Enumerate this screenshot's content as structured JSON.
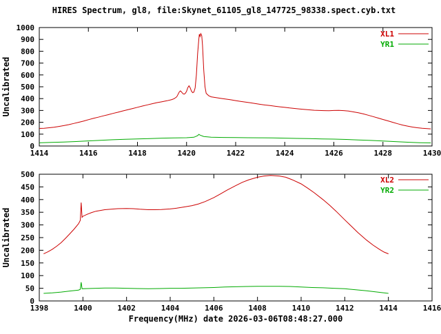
{
  "title": "HIRES Spectrum, gl8, file:Skynet_61105_gl8_147725_98338.spect.cyb.txt",
  "xlabel": "Frequency(MHz) date 2026-03-06T08:48:27.000",
  "colors": {
    "red": "#cc0000",
    "green": "#00aa00",
    "axis": "#000000",
    "background": "#ffffff"
  },
  "chart_data": [
    {
      "type": "line",
      "title": "",
      "ylabel": "Uncalibrated",
      "xlim": [
        1414,
        1430
      ],
      "ylim": [
        0,
        1000
      ],
      "xticks": [
        1414,
        1416,
        1418,
        1420,
        1422,
        1424,
        1426,
        1428,
        1430
      ],
      "yticks": [
        0,
        100,
        200,
        300,
        400,
        500,
        600,
        700,
        800,
        900,
        1000
      ],
      "grid": false,
      "legend_position": "top-right",
      "series": [
        {
          "name": "XL1",
          "color": "#cc0000",
          "points": [
            [
              1414.0,
              148
            ],
            [
              1414.2,
              150
            ],
            [
              1414.4,
              154
            ],
            [
              1414.6,
              158
            ],
            [
              1414.8,
              165
            ],
            [
              1415.0,
              172
            ],
            [
              1415.2,
              180
            ],
            [
              1415.4,
              190
            ],
            [
              1415.6,
              200
            ],
            [
              1415.8,
              210
            ],
            [
              1416.0,
              222
            ],
            [
              1416.2,
              233
            ],
            [
              1416.4,
              243
            ],
            [
              1416.6,
              254
            ],
            [
              1416.8,
              264
            ],
            [
              1417.0,
              275
            ],
            [
              1417.2,
              285
            ],
            [
              1417.4,
              296
            ],
            [
              1417.6,
              306
            ],
            [
              1417.8,
              316
            ],
            [
              1418.0,
              327
            ],
            [
              1418.2,
              337
            ],
            [
              1418.4,
              347
            ],
            [
              1418.6,
              357
            ],
            [
              1418.8,
              366
            ],
            [
              1419.0,
              374
            ],
            [
              1419.2,
              382
            ],
            [
              1419.4,
              392
            ],
            [
              1419.5,
              400
            ],
            [
              1419.6,
              415
            ],
            [
              1419.65,
              435
            ],
            [
              1419.7,
              455
            ],
            [
              1419.75,
              465
            ],
            [
              1419.8,
              455
            ],
            [
              1419.85,
              442
            ],
            [
              1419.9,
              438
            ],
            [
              1419.95,
              445
            ],
            [
              1420.0,
              462
            ],
            [
              1420.05,
              492
            ],
            [
              1420.1,
              508
            ],
            [
              1420.15,
              490
            ],
            [
              1420.2,
              462
            ],
            [
              1420.25,
              450
            ],
            [
              1420.3,
              455
            ],
            [
              1420.35,
              490
            ],
            [
              1420.4,
              600
            ],
            [
              1420.45,
              780
            ],
            [
              1420.5,
              905
            ],
            [
              1420.52,
              945
            ],
            [
              1420.55,
              925
            ],
            [
              1420.58,
              948
            ],
            [
              1420.62,
              930
            ],
            [
              1420.65,
              850
            ],
            [
              1420.7,
              640
            ],
            [
              1420.75,
              500
            ],
            [
              1420.8,
              445
            ],
            [
              1420.9,
              425
            ],
            [
              1421.0,
              415
            ],
            [
              1421.2,
              408
            ],
            [
              1421.4,
              402
            ],
            [
              1421.6,
              396
            ],
            [
              1421.8,
              390
            ],
            [
              1422.0,
              383
            ],
            [
              1422.2,
              377
            ],
            [
              1422.4,
              371
            ],
            [
              1422.6,
              365
            ],
            [
              1422.8,
              358
            ],
            [
              1423.0,
              352
            ],
            [
              1423.2,
              346
            ],
            [
              1423.4,
              341
            ],
            [
              1423.6,
              336
            ],
            [
              1423.8,
              331
            ],
            [
              1424.0,
              326
            ],
            [
              1424.2,
              321
            ],
            [
              1424.4,
              317
            ],
            [
              1424.6,
              313
            ],
            [
              1424.8,
              309
            ],
            [
              1425.0,
              305
            ],
            [
              1425.2,
              302
            ],
            [
              1425.4,
              300
            ],
            [
              1425.6,
              299
            ],
            [
              1425.8,
              298
            ],
            [
              1426.0,
              300
            ],
            [
              1426.2,
              301
            ],
            [
              1426.4,
              299
            ],
            [
              1426.6,
              295
            ],
            [
              1426.8,
              288
            ],
            [
              1427.0,
              280
            ],
            [
              1427.2,
              271
            ],
            [
              1427.4,
              260
            ],
            [
              1427.6,
              248
            ],
            [
              1427.8,
              236
            ],
            [
              1428.0,
              224
            ],
            [
              1428.2,
              212
            ],
            [
              1428.4,
              200
            ],
            [
              1428.6,
              188
            ],
            [
              1428.8,
              177
            ],
            [
              1429.0,
              168
            ],
            [
              1429.2,
              160
            ],
            [
              1429.4,
              154
            ],
            [
              1429.6,
              150
            ],
            [
              1429.8,
              147
            ],
            [
              1429.95,
              145
            ]
          ]
        },
        {
          "name": "YR1",
          "color": "#00aa00",
          "points": [
            [
              1414.0,
              27
            ],
            [
              1414.5,
              30
            ],
            [
              1415.0,
              34
            ],
            [
              1415.5,
              38
            ],
            [
              1416.0,
              43
            ],
            [
              1416.5,
              48
            ],
            [
              1417.0,
              53
            ],
            [
              1417.5,
              57
            ],
            [
              1418.0,
              60
            ],
            [
              1418.5,
              63
            ],
            [
              1419.0,
              66
            ],
            [
              1419.5,
              68
            ],
            [
              1420.0,
              70
            ],
            [
              1420.3,
              74
            ],
            [
              1420.45,
              88
            ],
            [
              1420.5,
              98
            ],
            [
              1420.55,
              92
            ],
            [
              1420.7,
              80
            ],
            [
              1421.0,
              74
            ],
            [
              1421.5,
              72
            ],
            [
              1422.0,
              71
            ],
            [
              1422.5,
              70
            ],
            [
              1423.0,
              69
            ],
            [
              1423.5,
              68
            ],
            [
              1424.0,
              66
            ],
            [
              1424.5,
              64
            ],
            [
              1425.0,
              62
            ],
            [
              1425.5,
              60
            ],
            [
              1426.0,
              58
            ],
            [
              1426.5,
              55
            ],
            [
              1427.0,
              51
            ],
            [
              1427.5,
              47
            ],
            [
              1428.0,
              42
            ],
            [
              1428.5,
              37
            ],
            [
              1429.0,
              32
            ],
            [
              1429.5,
              28
            ],
            [
              1429.95,
              26
            ]
          ]
        }
      ]
    },
    {
      "type": "line",
      "title": "",
      "ylabel": "Uncalibrated",
      "xlim": [
        1398,
        1416
      ],
      "ylim": [
        0,
        500
      ],
      "xticks": [
        1398,
        1400,
        1402,
        1404,
        1406,
        1408,
        1410,
        1412,
        1414,
        1416
      ],
      "yticks": [
        0,
        50,
        100,
        150,
        200,
        250,
        300,
        350,
        400,
        450,
        500
      ],
      "grid": false,
      "legend_position": "top-right",
      "series": [
        {
          "name": "XL2",
          "color": "#cc0000",
          "points": [
            [
              1398.2,
              186
            ],
            [
              1398.4,
              194
            ],
            [
              1398.6,
              204
            ],
            [
              1398.8,
              216
            ],
            [
              1399.0,
              230
            ],
            [
              1399.2,
              247
            ],
            [
              1399.4,
              265
            ],
            [
              1399.6,
              284
            ],
            [
              1399.8,
              305
            ],
            [
              1399.88,
              318
            ],
            [
              1399.92,
              388
            ],
            [
              1399.96,
              330
            ],
            [
              1400.0,
              334
            ],
            [
              1400.2,
              342
            ],
            [
              1400.4,
              349
            ],
            [
              1400.6,
              354
            ],
            [
              1400.8,
              357
            ],
            [
              1401.0,
              360
            ],
            [
              1401.3,
              362
            ],
            [
              1401.6,
              364
            ],
            [
              1402.0,
              365
            ],
            [
              1402.3,
              364
            ],
            [
              1402.6,
              362
            ],
            [
              1403.0,
              360
            ],
            [
              1403.3,
              360
            ],
            [
              1403.6,
              361
            ],
            [
              1404.0,
              363
            ],
            [
              1404.3,
              366
            ],
            [
              1404.6,
              370
            ],
            [
              1405.0,
              376
            ],
            [
              1405.3,
              383
            ],
            [
              1405.6,
              392
            ],
            [
              1406.0,
              408
            ],
            [
              1406.3,
              422
            ],
            [
              1406.6,
              437
            ],
            [
              1407.0,
              455
            ],
            [
              1407.3,
              468
            ],
            [
              1407.6,
              478
            ],
            [
              1408.0,
              488
            ],
            [
              1408.3,
              493
            ],
            [
              1408.6,
              495
            ],
            [
              1409.0,
              493
            ],
            [
              1409.3,
              488
            ],
            [
              1409.6,
              478
            ],
            [
              1410.0,
              462
            ],
            [
              1410.3,
              445
            ],
            [
              1410.6,
              427
            ],
            [
              1411.0,
              400
            ],
            [
              1411.3,
              378
            ],
            [
              1411.6,
              354
            ],
            [
              1412.0,
              320
            ],
            [
              1412.3,
              295
            ],
            [
              1412.6,
              270
            ],
            [
              1413.0,
              240
            ],
            [
              1413.3,
              220
            ],
            [
              1413.6,
              203
            ],
            [
              1413.8,
              193
            ],
            [
              1414.0,
              186
            ]
          ]
        },
        {
          "name": "YR2",
          "color": "#00aa00",
          "points": [
            [
              1398.2,
              30
            ],
            [
              1398.6,
              32
            ],
            [
              1399.0,
              35
            ],
            [
              1399.4,
              39
            ],
            [
              1399.8,
              43
            ],
            [
              1399.88,
              46
            ],
            [
              1399.92,
              74
            ],
            [
              1399.96,
              48
            ],
            [
              1400.2,
              49
            ],
            [
              1400.6,
              50
            ],
            [
              1401.0,
              51
            ],
            [
              1401.5,
              51
            ],
            [
              1402.0,
              50
            ],
            [
              1402.5,
              49
            ],
            [
              1403.0,
              48
            ],
            [
              1403.5,
              49
            ],
            [
              1404.0,
              50
            ],
            [
              1404.5,
              50
            ],
            [
              1405.0,
              51
            ],
            [
              1405.5,
              52
            ],
            [
              1406.0,
              53
            ],
            [
              1406.5,
              55
            ],
            [
              1407.0,
              56
            ],
            [
              1407.5,
              57
            ],
            [
              1408.0,
              58
            ],
            [
              1408.5,
              58
            ],
            [
              1409.0,
              58
            ],
            [
              1409.5,
              57
            ],
            [
              1410.0,
              55
            ],
            [
              1410.5,
              53
            ],
            [
              1411.0,
              52
            ],
            [
              1411.5,
              50
            ],
            [
              1412.0,
              48
            ],
            [
              1412.5,
              44
            ],
            [
              1413.0,
              40
            ],
            [
              1413.5,
              35
            ],
            [
              1414.0,
              30
            ]
          ]
        }
      ]
    }
  ]
}
